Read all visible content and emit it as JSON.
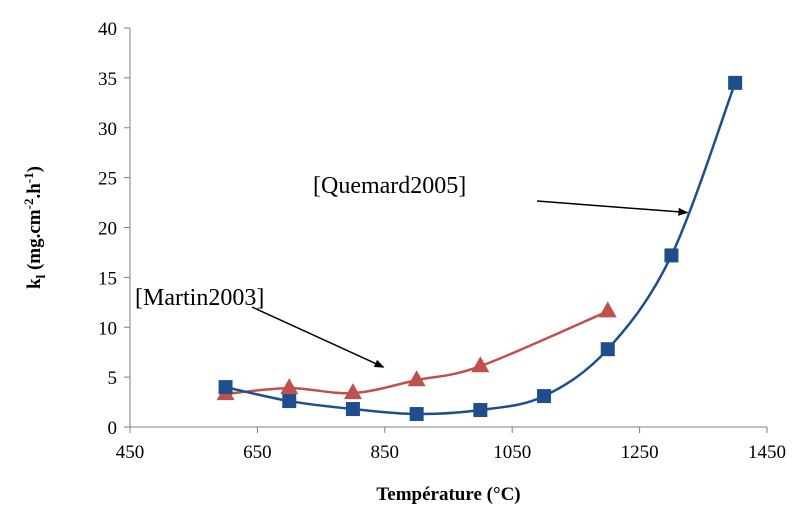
{
  "chart_data": {
    "type": "line",
    "title": "",
    "xlabel": "Température (°C)",
    "ylabel": {
      "main": "k",
      "sub": "l",
      "unit_prefix": " (mg.cm",
      "exp1": "-2",
      "mid": ".h",
      "exp2": "-1",
      "unit_suffix": ")"
    },
    "xlim": [
      450,
      1450
    ],
    "ylim": [
      0,
      40
    ],
    "xticks": [
      450,
      650,
      850,
      1050,
      1250,
      1450
    ],
    "yticks": [
      0,
      5,
      10,
      15,
      20,
      25,
      30,
      35,
      40
    ],
    "grid": false,
    "legend": "none",
    "series": [
      {
        "label_text": "[Martin2003]",
        "color": "#c0504d",
        "marker": "triangle",
        "x": [
          600,
          700,
          800,
          900,
          1000,
          1200
        ],
        "y": [
          3.3,
          3.9,
          3.4,
          4.7,
          6.1,
          11.6
        ]
      },
      {
        "label_text": "[Quemard2005]",
        "color": "#1f4e8c",
        "marker": "square",
        "x": [
          600,
          700,
          800,
          900,
          1000,
          1100,
          1200,
          1300,
          1400
        ],
        "y": [
          4.0,
          2.6,
          1.8,
          1.3,
          1.7,
          3.1,
          7.8,
          17.2,
          34.5
        ]
      }
    ],
    "annotations": [
      {
        "text": "[Martin2003]",
        "arrow_to": {
          "x": 848,
          "y": 6.0
        }
      },
      {
        "text": "[Quemard2005]",
        "arrow_to": {
          "x": 1325,
          "y": 21.5
        }
      }
    ]
  }
}
